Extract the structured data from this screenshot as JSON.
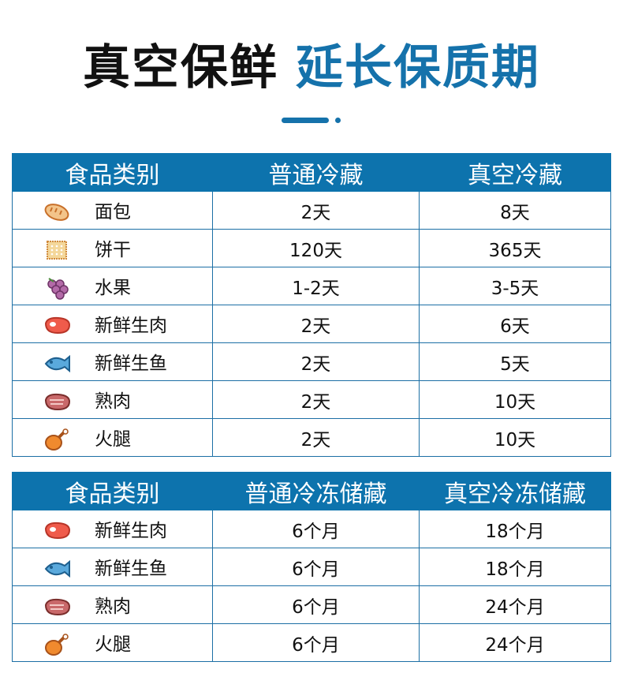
{
  "title": {
    "part1": "真空保鲜",
    "part2": "延长保质期"
  },
  "colors": {
    "accent": "#0d73ad"
  },
  "table1": {
    "headers": [
      "食品类别",
      "普通冷藏",
      "真空冷藏"
    ],
    "rows": [
      {
        "icon": "bread-icon",
        "food": "面包",
        "normal": "2天",
        "vacuum": "8天"
      },
      {
        "icon": "biscuit-icon",
        "food": "饼干",
        "normal": "120天",
        "vacuum": "365天"
      },
      {
        "icon": "grapes-icon",
        "food": "水果",
        "normal": "1-2天",
        "vacuum": "3-5天"
      },
      {
        "icon": "raw-meat-icon",
        "food": "新鲜生肉",
        "normal": "2天",
        "vacuum": "6天"
      },
      {
        "icon": "fish-icon",
        "food": "新鲜生鱼",
        "normal": "2天",
        "vacuum": "5天"
      },
      {
        "icon": "cooked-meat-icon",
        "food": "熟肉",
        "normal": "2天",
        "vacuum": "10天"
      },
      {
        "icon": "ham-leg-icon",
        "food": "火腿",
        "normal": "2天",
        "vacuum": "10天"
      }
    ]
  },
  "table2": {
    "headers": [
      "食品类别",
      "普通冷冻储藏",
      "真空冷冻储藏"
    ],
    "rows": [
      {
        "icon": "raw-meat-icon",
        "food": "新鲜生肉",
        "normal": "6个月",
        "vacuum": "18个月"
      },
      {
        "icon": "fish-icon",
        "food": "新鲜生鱼",
        "normal": "6个月",
        "vacuum": "18个月"
      },
      {
        "icon": "cooked-meat-icon",
        "food": "熟肉",
        "normal": "6个月",
        "vacuum": "24个月"
      },
      {
        "icon": "ham-leg-icon",
        "food": "火腿",
        "normal": "6个月",
        "vacuum": "24个月"
      }
    ]
  }
}
